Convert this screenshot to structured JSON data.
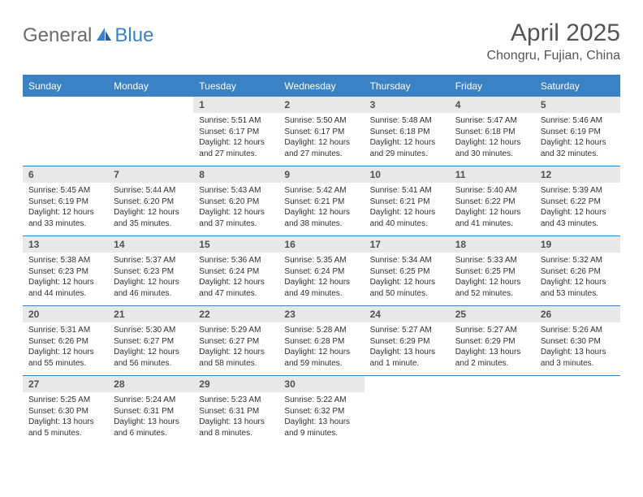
{
  "brand": {
    "text1": "General",
    "text2": "Blue"
  },
  "title": "April 2025",
  "subtitle": "Chongru, Fujian, China",
  "colors": {
    "accent": "#3b82c4",
    "daynum_bg": "#e8e8e8",
    "text_dark": "#303030",
    "text_mid": "#555555",
    "text_logo_gray": "#6b6b6b"
  },
  "dayNames": [
    "Sunday",
    "Monday",
    "Tuesday",
    "Wednesday",
    "Thursday",
    "Friday",
    "Saturday"
  ],
  "weeks": [
    [
      null,
      null,
      {
        "n": "1",
        "sr": "5:51 AM",
        "ss": "6:17 PM",
        "dl": "12 hours and 27 minutes."
      },
      {
        "n": "2",
        "sr": "5:50 AM",
        "ss": "6:17 PM",
        "dl": "12 hours and 27 minutes."
      },
      {
        "n": "3",
        "sr": "5:48 AM",
        "ss": "6:18 PM",
        "dl": "12 hours and 29 minutes."
      },
      {
        "n": "4",
        "sr": "5:47 AM",
        "ss": "6:18 PM",
        "dl": "12 hours and 30 minutes."
      },
      {
        "n": "5",
        "sr": "5:46 AM",
        "ss": "6:19 PM",
        "dl": "12 hours and 32 minutes."
      }
    ],
    [
      {
        "n": "6",
        "sr": "5:45 AM",
        "ss": "6:19 PM",
        "dl": "12 hours and 33 minutes."
      },
      {
        "n": "7",
        "sr": "5:44 AM",
        "ss": "6:20 PM",
        "dl": "12 hours and 35 minutes."
      },
      {
        "n": "8",
        "sr": "5:43 AM",
        "ss": "6:20 PM",
        "dl": "12 hours and 37 minutes."
      },
      {
        "n": "9",
        "sr": "5:42 AM",
        "ss": "6:21 PM",
        "dl": "12 hours and 38 minutes."
      },
      {
        "n": "10",
        "sr": "5:41 AM",
        "ss": "6:21 PM",
        "dl": "12 hours and 40 minutes."
      },
      {
        "n": "11",
        "sr": "5:40 AM",
        "ss": "6:22 PM",
        "dl": "12 hours and 41 minutes."
      },
      {
        "n": "12",
        "sr": "5:39 AM",
        "ss": "6:22 PM",
        "dl": "12 hours and 43 minutes."
      }
    ],
    [
      {
        "n": "13",
        "sr": "5:38 AM",
        "ss": "6:23 PM",
        "dl": "12 hours and 44 minutes."
      },
      {
        "n": "14",
        "sr": "5:37 AM",
        "ss": "6:23 PM",
        "dl": "12 hours and 46 minutes."
      },
      {
        "n": "15",
        "sr": "5:36 AM",
        "ss": "6:24 PM",
        "dl": "12 hours and 47 minutes."
      },
      {
        "n": "16",
        "sr": "5:35 AM",
        "ss": "6:24 PM",
        "dl": "12 hours and 49 minutes."
      },
      {
        "n": "17",
        "sr": "5:34 AM",
        "ss": "6:25 PM",
        "dl": "12 hours and 50 minutes."
      },
      {
        "n": "18",
        "sr": "5:33 AM",
        "ss": "6:25 PM",
        "dl": "12 hours and 52 minutes."
      },
      {
        "n": "19",
        "sr": "5:32 AM",
        "ss": "6:26 PM",
        "dl": "12 hours and 53 minutes."
      }
    ],
    [
      {
        "n": "20",
        "sr": "5:31 AM",
        "ss": "6:26 PM",
        "dl": "12 hours and 55 minutes."
      },
      {
        "n": "21",
        "sr": "5:30 AM",
        "ss": "6:27 PM",
        "dl": "12 hours and 56 minutes."
      },
      {
        "n": "22",
        "sr": "5:29 AM",
        "ss": "6:27 PM",
        "dl": "12 hours and 58 minutes."
      },
      {
        "n": "23",
        "sr": "5:28 AM",
        "ss": "6:28 PM",
        "dl": "12 hours and 59 minutes."
      },
      {
        "n": "24",
        "sr": "5:27 AM",
        "ss": "6:29 PM",
        "dl": "13 hours and 1 minute."
      },
      {
        "n": "25",
        "sr": "5:27 AM",
        "ss": "6:29 PM",
        "dl": "13 hours and 2 minutes."
      },
      {
        "n": "26",
        "sr": "5:26 AM",
        "ss": "6:30 PM",
        "dl": "13 hours and 3 minutes."
      }
    ],
    [
      {
        "n": "27",
        "sr": "5:25 AM",
        "ss": "6:30 PM",
        "dl": "13 hours and 5 minutes."
      },
      {
        "n": "28",
        "sr": "5:24 AM",
        "ss": "6:31 PM",
        "dl": "13 hours and 6 minutes."
      },
      {
        "n": "29",
        "sr": "5:23 AM",
        "ss": "6:31 PM",
        "dl": "13 hours and 8 minutes."
      },
      {
        "n": "30",
        "sr": "5:22 AM",
        "ss": "6:32 PM",
        "dl": "13 hours and 9 minutes."
      },
      null,
      null,
      null
    ]
  ],
  "labels": {
    "sunrise": "Sunrise:",
    "sunset": "Sunset:",
    "daylight": "Daylight:"
  }
}
